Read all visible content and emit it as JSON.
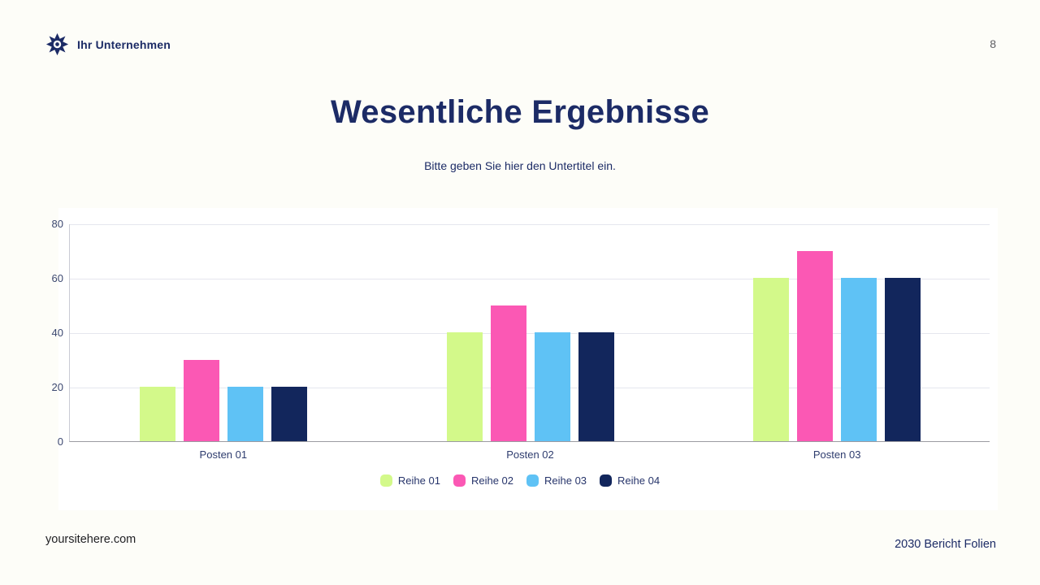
{
  "header": {
    "brand": "Ihr Unternehmen",
    "page_number": "8"
  },
  "title": "Wesentliche Ergebnisse",
  "subtitle": "Bitte geben Sie hier den Untertitel ein.",
  "footer": {
    "left": "yoursitehere.com",
    "right": "2030 Bericht Folien"
  },
  "colors": {
    "brand_navy": "#1c2b66",
    "axis_line": "#9b9ba1",
    "gridline": "#e5e6ee",
    "background": "#fdfdf8"
  },
  "chart_data": {
    "type": "bar",
    "title": "",
    "categories": [
      "Posten 01",
      "Posten 02",
      "Posten 03"
    ],
    "series": [
      {
        "name": "Reihe 01",
        "color": "#d3f98a",
        "values": [
          20,
          40,
          60
        ]
      },
      {
        "name": "Reihe 02",
        "color": "#fb58b4",
        "values": [
          30,
          50,
          70
        ]
      },
      {
        "name": "Reihe 03",
        "color": "#5fc2f5",
        "values": [
          20,
          40,
          60
        ]
      },
      {
        "name": "Reihe 04",
        "color": "#12265c",
        "values": [
          20,
          40,
          60
        ]
      }
    ],
    "ylim": [
      0,
      80
    ],
    "yticks": [
      0,
      20,
      40,
      60,
      80
    ],
    "xlabel": "",
    "ylabel": "",
    "grid": true,
    "legend_position": "bottom"
  }
}
